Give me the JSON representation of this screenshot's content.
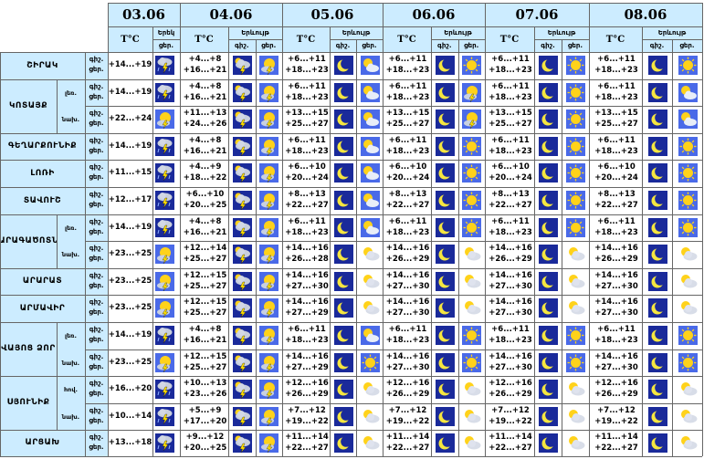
{
  "days": [
    "03.06",
    "04.06",
    "05.06",
    "06.06",
    "07.06",
    "08.06"
  ],
  "header": {
    "temp_label": "T°C",
    "precip_short": "Երեկ",
    "precip_label": "Երևույթ",
    "night": "գիշ.",
    "day": "ցեր."
  },
  "regions": [
    {
      "name": "ՇԻՐԱԿ",
      "subs": [
        {
          "label": "",
          "d1": {
            "n": "",
            "d": "+14...+19",
            "icon": "storm"
          },
          "rest": [
            {
              "n": "+4...+8",
              "d": "+16...+21",
              "icons": [
                "cloud-storm",
                "sun-storm"
              ]
            },
            {
              "n": "+6...+11",
              "d": "+18...+23",
              "icons": [
                "moon",
                "sun-cloud"
              ]
            },
            {
              "n": "+6...+11",
              "d": "+18...+23",
              "icons": [
                "moon",
                "sun"
              ]
            },
            {
              "n": "+6...+11",
              "d": "+18...+23",
              "icons": [
                "moon",
                "sun"
              ]
            },
            {
              "n": "+6...+11",
              "d": "+18...+23",
              "icons": [
                "moon",
                "sun"
              ]
            }
          ]
        }
      ]
    },
    {
      "name": "ԿՈՏԱՅՔ",
      "subs": [
        {
          "label": "լեռ.",
          "d1": {
            "n": "",
            "d": "+14...+19",
            "icon": "storm"
          },
          "rest": [
            {
              "n": "+4...+8",
              "d": "+16...+21",
              "icons": [
                "cloud-storm",
                "sun-storm"
              ]
            },
            {
              "n": "+6...+11",
              "d": "+18...+23",
              "icons": [
                "moon",
                "sun-cloud"
              ]
            },
            {
              "n": "+6...+11",
              "d": "+18...+23",
              "icons": [
                "moon",
                "sun-storm"
              ]
            },
            {
              "n": "+6...+11",
              "d": "+18...+23",
              "icons": [
                "moon",
                "sun"
              ]
            },
            {
              "n": "+6...+11",
              "d": "+18...+23",
              "icons": [
                "moon",
                "sun-cloud"
              ]
            }
          ]
        },
        {
          "label": "նախ.",
          "d1": {
            "n": "",
            "d": "+22...+24",
            "icon": "sun-storm"
          },
          "rest": [
            {
              "n": "+11...+13",
              "d": "+24...+26",
              "icons": [
                "cloud-storm",
                "sun-storm"
              ]
            },
            {
              "n": "+13...+15",
              "d": "+25...+27",
              "icons": [
                "moon",
                "sun-cloud"
              ]
            },
            {
              "n": "+13...+15",
              "d": "+25...+27",
              "icons": [
                "moon",
                "sun-storm"
              ]
            },
            {
              "n": "+13...+15",
              "d": "+25...+27",
              "icons": [
                "moon",
                "sun"
              ]
            },
            {
              "n": "+13...+15",
              "d": "+25...+27",
              "icons": [
                "moon",
                "sun-cloud"
              ]
            }
          ]
        }
      ]
    },
    {
      "name": "ԳԵՂԱՐՔՈՒՆԻՔ",
      "subs": [
        {
          "label": "",
          "d1": {
            "n": "",
            "d": "+14...+19",
            "icon": "storm"
          },
          "rest": [
            {
              "n": "+4...+8",
              "d": "+16...+21",
              "icons": [
                "cloud-storm",
                "sun-storm"
              ]
            },
            {
              "n": "+6...+11",
              "d": "+18...+23",
              "icons": [
                "moon",
                "sun-cloud"
              ]
            },
            {
              "n": "+6...+11",
              "d": "+18...+23",
              "icons": [
                "moon",
                "sun"
              ]
            },
            {
              "n": "+6...+11",
              "d": "+18...+23",
              "icons": [
                "moon",
                "sun"
              ]
            },
            {
              "n": "+6...+11",
              "d": "+18...+23",
              "icons": [
                "moon",
                "sun"
              ]
            }
          ]
        }
      ]
    },
    {
      "name": "ԼՈՌԻ",
      "subs": [
        {
          "label": "",
          "d1": {
            "n": "",
            "d": "+11...+15",
            "icon": "storm"
          },
          "rest": [
            {
              "n": "+4...+9",
              "d": "+18...+22",
              "icons": [
                "cloud-storm",
                "sun-storm"
              ]
            },
            {
              "n": "+6...+10",
              "d": "+20...+24",
              "icons": [
                "moon",
                "sun-cloud"
              ]
            },
            {
              "n": "+6...+10",
              "d": "+20...+24",
              "icons": [
                "moon",
                "sun"
              ]
            },
            {
              "n": "+6...+10",
              "d": "+20...+24",
              "icons": [
                "moon",
                "sun"
              ]
            },
            {
              "n": "+6...+10",
              "d": "+20...+24",
              "icons": [
                "moon",
                "sun"
              ]
            }
          ]
        }
      ]
    },
    {
      "name": "ՏԱՎՈՒՇ",
      "subs": [
        {
          "label": "",
          "d1": {
            "n": "",
            "d": "+12...+17",
            "icon": "storm"
          },
          "rest": [
            {
              "n": "+6...+10",
              "d": "+20...+25",
              "icons": [
                "cloud-storm",
                "sun-storm"
              ]
            },
            {
              "n": "+8...+13",
              "d": "+22...+27",
              "icons": [
                "moon",
                "sun-cloud"
              ]
            },
            {
              "n": "+8...+13",
              "d": "+22...+27",
              "icons": [
                "moon",
                "sun"
              ]
            },
            {
              "n": "+8...+13",
              "d": "+22...+27",
              "icons": [
                "moon",
                "sun"
              ]
            },
            {
              "n": "+8...+13",
              "d": "+22...+27",
              "icons": [
                "moon",
                "sun"
              ]
            }
          ]
        }
      ]
    },
    {
      "name": "ԱՐԱԳԱԾՈՏՆ",
      "subs": [
        {
          "label": "լեռ.",
          "d1": {
            "n": "",
            "d": "+14...+19",
            "icon": "storm"
          },
          "rest": [
            {
              "n": "+4...+8",
              "d": "+16...+21",
              "icons": [
                "cloud-storm",
                "sun-storm"
              ]
            },
            {
              "n": "+6...+11",
              "d": "+18...+23",
              "icons": [
                "moon",
                "sun-cloud"
              ]
            },
            {
              "n": "+6...+11",
              "d": "+18...+23",
              "icons": [
                "moon",
                "sun"
              ]
            },
            {
              "n": "+6...+11",
              "d": "+18...+23",
              "icons": [
                "moon",
                "sun"
              ]
            },
            {
              "n": "+6...+11",
              "d": "+18...+23",
              "icons": [
                "moon",
                "sun"
              ]
            }
          ]
        },
        {
          "label": "նախ.",
          "d1": {
            "n": "",
            "d": "+23...+25",
            "icon": "sun-storm"
          },
          "rest": [
            {
              "n": "+12...+14",
              "d": "+25...+27",
              "icons": [
                "cloud-storm",
                "sun-storm"
              ]
            },
            {
              "n": "+14...+16",
              "d": "+26...+28",
              "icons": [
                "moon",
                "cloud-sun"
              ]
            },
            {
              "n": "+14...+16",
              "d": "+26...+29",
              "icons": [
                "moon",
                "cloud-sun"
              ]
            },
            {
              "n": "+14...+16",
              "d": "+26...+29",
              "icons": [
                "moon",
                "cloud-sun"
              ]
            },
            {
              "n": "+14...+16",
              "d": "+26...+29",
              "icons": [
                "moon",
                "cloud-sun"
              ]
            }
          ]
        }
      ]
    },
    {
      "name": "ԱՐԱՐԱՏ",
      "subs": [
        {
          "label": "",
          "d1": {
            "n": "",
            "d": "+23...+25",
            "icon": "sun-storm"
          },
          "rest": [
            {
              "n": "+12...+15",
              "d": "+25...+27",
              "icons": [
                "cloud-storm",
                "sun-storm"
              ]
            },
            {
              "n": "+14...+16",
              "d": "+27...+30",
              "icons": [
                "moon",
                "cloud-sun"
              ]
            },
            {
              "n": "+14...+16",
              "d": "+27...+30",
              "icons": [
                "moon",
                "cloud-sun"
              ]
            },
            {
              "n": "+14...+16",
              "d": "+27...+30",
              "icons": [
                "moon",
                "cloud-sun"
              ]
            },
            {
              "n": "+14...+16",
              "d": "+27...+30",
              "icons": [
                "moon",
                "cloud-sun"
              ]
            }
          ]
        }
      ]
    },
    {
      "name": "ԱՐՄԱՎԻՐ",
      "subs": [
        {
          "label": "",
          "d1": {
            "n": "",
            "d": "+23...+25",
            "icon": "sun-storm"
          },
          "rest": [
            {
              "n": "+12...+15",
              "d": "+25...+27",
              "icons": [
                "cloud-storm",
                "sun-storm"
              ]
            },
            {
              "n": "+14...+16",
              "d": "+27...+29",
              "icons": [
                "moon",
                "cloud-sun"
              ]
            },
            {
              "n": "+14...+16",
              "d": "+27...+30",
              "icons": [
                "moon",
                "cloud-sun"
              ]
            },
            {
              "n": "+14...+16",
              "d": "+27...+30",
              "icons": [
                "moon",
                "cloud-sun"
              ]
            },
            {
              "n": "+14...+16",
              "d": "+27...+30",
              "icons": [
                "moon",
                "cloud-sun"
              ]
            }
          ]
        }
      ]
    },
    {
      "name": "ՎԱՅՈՑ ՁՈՐ",
      "subs": [
        {
          "label": "լեռ.",
          "d1": {
            "n": "",
            "d": "+14...+19",
            "icon": "storm"
          },
          "rest": [
            {
              "n": "+4...+8",
              "d": "+16...+21",
              "icons": [
                "cloud-storm",
                "sun-storm"
              ]
            },
            {
              "n": "+6...+11",
              "d": "+18...+23",
              "icons": [
                "moon",
                "sun-cloud"
              ]
            },
            {
              "n": "+6...+11",
              "d": "+18...+23",
              "icons": [
                "moon",
                "sun"
              ]
            },
            {
              "n": "+6...+11",
              "d": "+18...+23",
              "icons": [
                "moon",
                "sun"
              ]
            },
            {
              "n": "+6...+11",
              "d": "+18...+23",
              "icons": [
                "moon",
                "sun"
              ]
            }
          ]
        },
        {
          "label": "նախ.",
          "d1": {
            "n": "",
            "d": "+23...+25",
            "icon": "sun-storm"
          },
          "rest": [
            {
              "n": "+12...+15",
              "d": "+25...+27",
              "icons": [
                "cloud-storm",
                "sun-storm"
              ]
            },
            {
              "n": "+14...+16",
              "d": "+27...+29",
              "icons": [
                "moon",
                "sun"
              ]
            },
            {
              "n": "+14...+16",
              "d": "+27...+30",
              "icons": [
                "moon",
                "sun"
              ]
            },
            {
              "n": "+14...+16",
              "d": "+27...+30",
              "icons": [
                "moon",
                "sun"
              ]
            },
            {
              "n": "+14...+16",
              "d": "+27...+30",
              "icons": [
                "moon",
                "sun"
              ]
            }
          ]
        }
      ]
    },
    {
      "name": "ՍՅՈՒՆԻՔ",
      "subs": [
        {
          "label": "հով.",
          "d1": {
            "n": "",
            "d": "+16...+20",
            "icon": "storm"
          },
          "rest": [
            {
              "n": "+10...+13",
              "d": "+23...+26",
              "icons": [
                "cloud-storm",
                "sun-storm"
              ]
            },
            {
              "n": "+12...+16",
              "d": "+26...+29",
              "icons": [
                "moon",
                "cloud-sun"
              ]
            },
            {
              "n": "+12...+16",
              "d": "+26...+29",
              "icons": [
                "moon",
                "cloud-sun"
              ]
            },
            {
              "n": "+12...+16",
              "d": "+26...+29",
              "icons": [
                "moon",
                "cloud-sun"
              ]
            },
            {
              "n": "+12...+16",
              "d": "+26...+29",
              "icons": [
                "moon",
                "cloud-sun"
              ]
            }
          ]
        },
        {
          "label": "նախ.",
          "d1": {
            "n": "",
            "d": "+10...+14",
            "icon": "storm"
          },
          "rest": [
            {
              "n": "+5...+9",
              "d": "+17...+20",
              "icons": [
                "cloud-storm",
                "sun-storm"
              ]
            },
            {
              "n": "+7...+12",
              "d": "+19...+22",
              "icons": [
                "moon",
                "cloud-sun"
              ]
            },
            {
              "n": "+7...+12",
              "d": "+19...+22",
              "icons": [
                "moon",
                "cloud-sun"
              ]
            },
            {
              "n": "+7...+12",
              "d": "+19...+22",
              "icons": [
                "moon",
                "cloud-sun"
              ]
            },
            {
              "n": "+7...+12",
              "d": "+19...+22",
              "icons": [
                "moon",
                "cloud-sun"
              ]
            }
          ]
        }
      ]
    },
    {
      "name": "ԱՐՑԱԽ",
      "subs": [
        {
          "label": "",
          "d1": {
            "n": "",
            "d": "+13...+18",
            "icon": "storm"
          },
          "rest": [
            {
              "n": "+9...+12",
              "d": "+20...+25",
              "icons": [
                "cloud-storm",
                "sun-storm"
              ]
            },
            {
              "n": "+11...+14",
              "d": "+22...+27",
              "icons": [
                "moon",
                "cloud-sun"
              ]
            },
            {
              "n": "+11...+14",
              "d": "+22...+27",
              "icons": [
                "moon",
                "cloud-sun"
              ]
            },
            {
              "n": "+11...+14",
              "d": "+22...+27",
              "icons": [
                "moon",
                "cloud-sun"
              ]
            },
            {
              "n": "+11...+14",
              "d": "+22...+27",
              "icons": [
                "moon",
                "cloud-sun"
              ]
            }
          ]
        }
      ]
    }
  ]
}
